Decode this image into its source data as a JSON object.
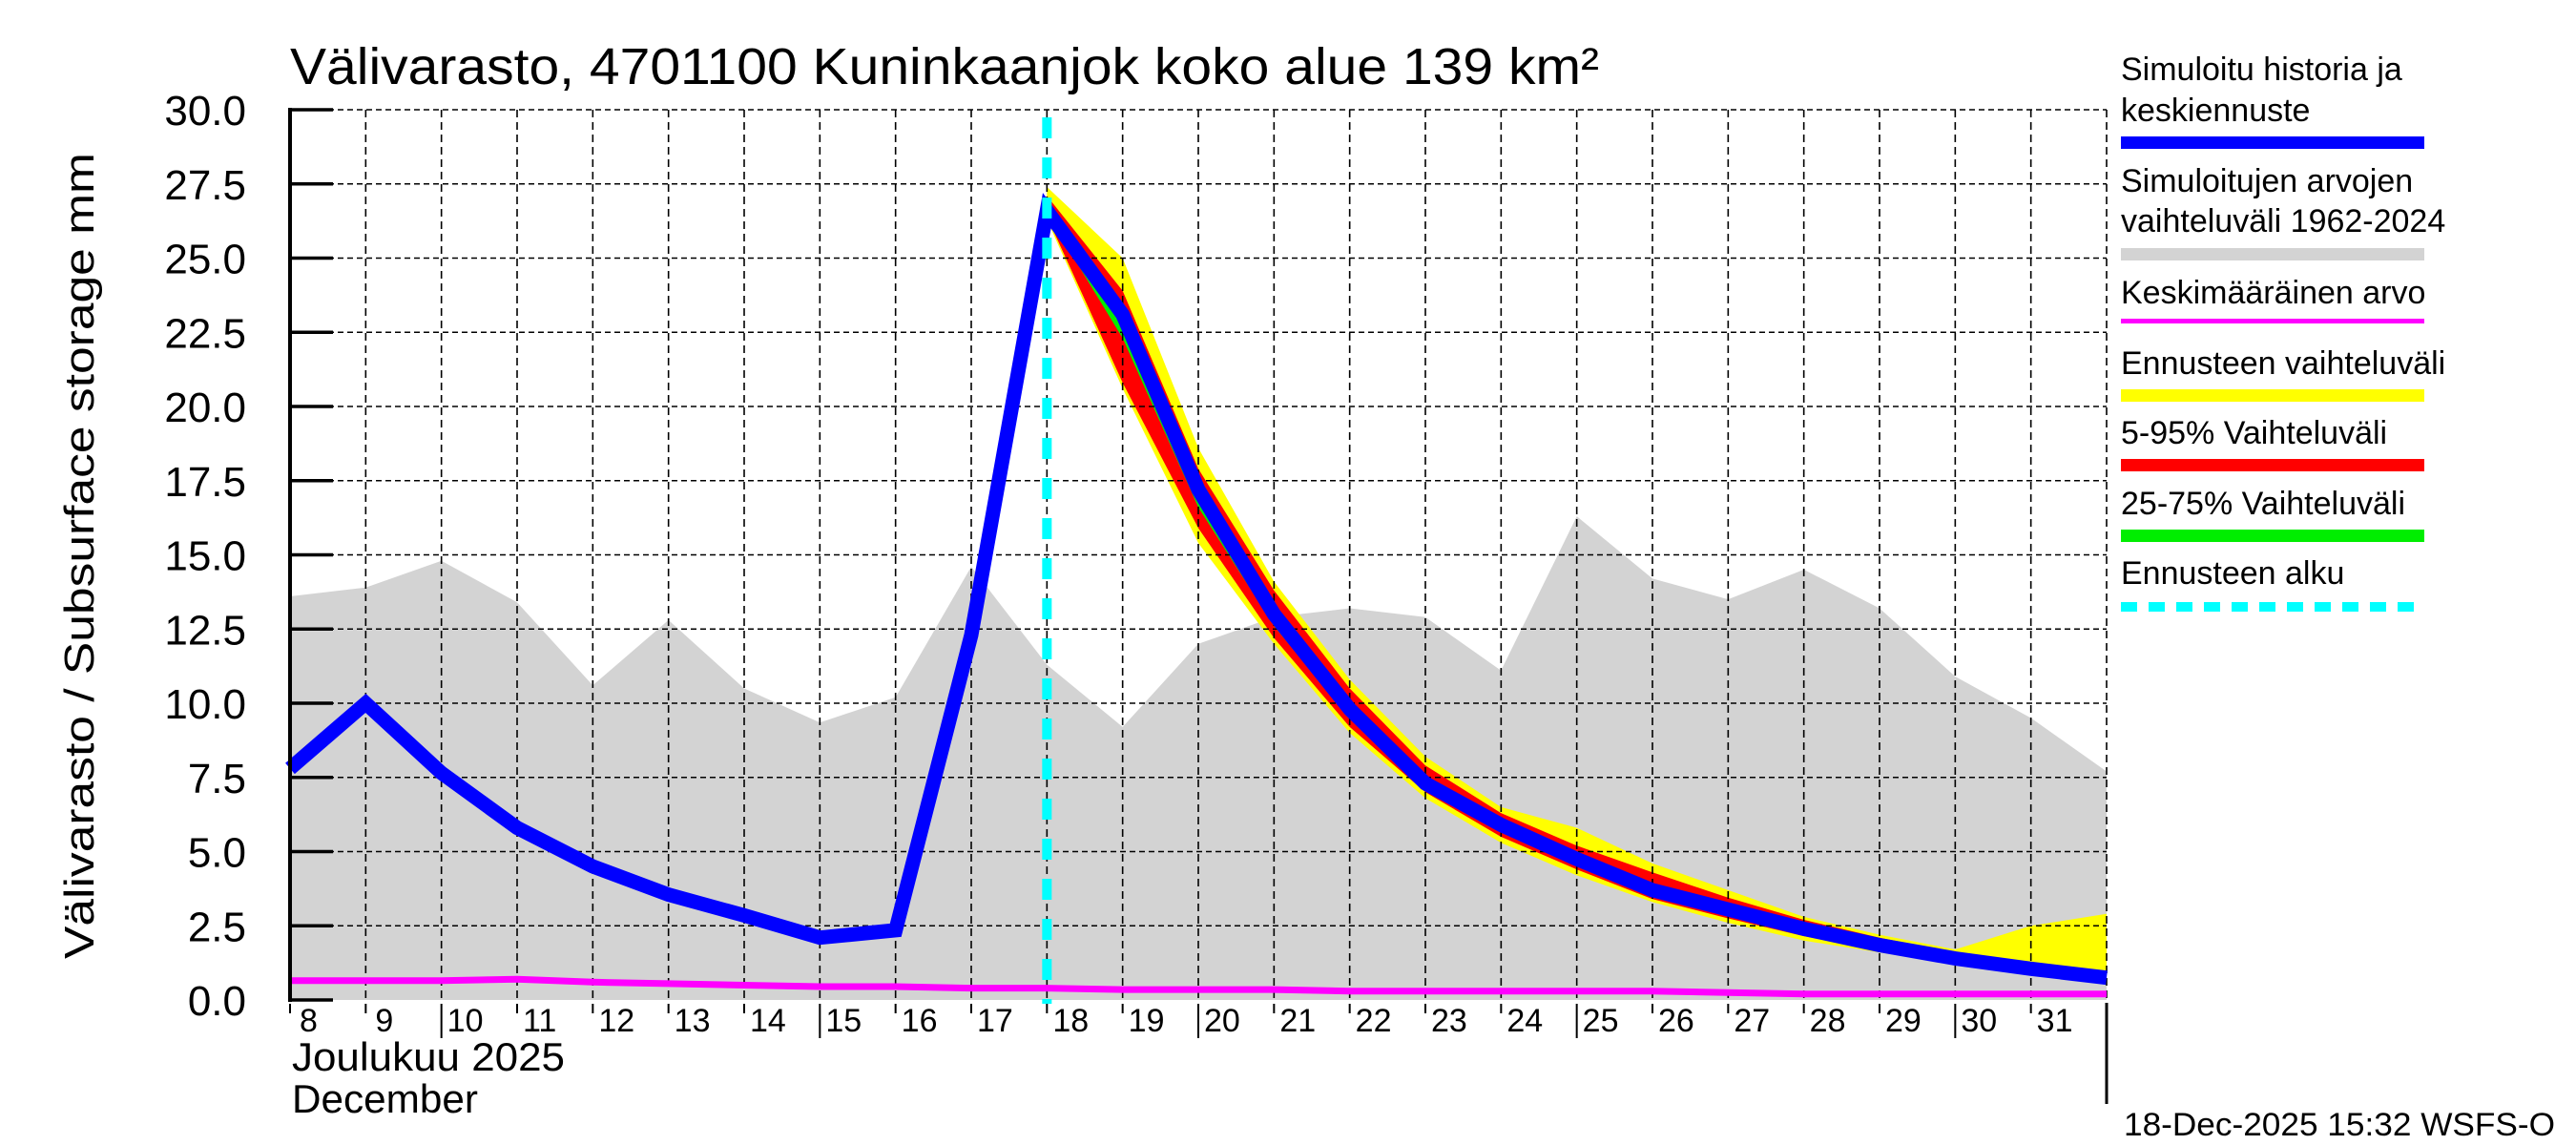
{
  "chart_data": {
    "type": "area",
    "title": "Välivarasto, 4701100 Kuninkaanjok koko alue 139 km²",
    "ylabel": "Välivarasto / Subsurface storage  mm",
    "xlabel_line1": "Joulukuu  2025",
    "xlabel_line2": "December",
    "ylim": [
      0,
      30
    ],
    "xlim": [
      8,
      32
    ],
    "yticks": [
      "0.0",
      "2.5",
      "5.0",
      "7.5",
      "10.0",
      "12.5",
      "15.0",
      "17.5",
      "20.0",
      "22.5",
      "25.0",
      "27.5",
      "30.0"
    ],
    "ytick_values": [
      0,
      2.5,
      5,
      7.5,
      10,
      12.5,
      15,
      17.5,
      20,
      22.5,
      25,
      27.5,
      30
    ],
    "xticks": [
      "8",
      "9",
      "10",
      "11",
      "12",
      "13",
      "14",
      "15",
      "16",
      "17",
      "18",
      "19",
      "20",
      "21",
      "22",
      "23",
      "24",
      "25",
      "26",
      "27",
      "28",
      "29",
      "30",
      "31"
    ],
    "xtick_values": [
      8,
      9,
      10,
      11,
      12,
      13,
      14,
      15,
      16,
      17,
      18,
      19,
      20,
      21,
      22,
      23,
      24,
      25,
      26,
      27,
      28,
      29,
      30,
      31
    ],
    "grid": true,
    "forecast_start": 18,
    "x": [
      8,
      9,
      10,
      11,
      12,
      13,
      14,
      15,
      16,
      17,
      18,
      19,
      20,
      21,
      22,
      23,
      24,
      25,
      26,
      27,
      28,
      29,
      30,
      31,
      32
    ],
    "series": [
      {
        "name": "Simuloitujen arvojen vaihteluväli 1962-2024",
        "kind": "band",
        "color": "#d3d3d3",
        "lower": [
          0,
          0,
          0,
          0,
          0,
          0,
          0,
          0,
          0,
          0,
          0,
          0,
          0,
          0,
          0,
          0,
          0,
          0,
          0,
          0,
          0,
          0,
          0,
          0,
          0
        ],
        "upper": [
          13.6,
          13.9,
          14.8,
          13.4,
          10.6,
          12.8,
          10.5,
          9.35,
          10.2,
          14.6,
          11.3,
          9.2,
          12.0,
          12.9,
          13.2,
          12.9,
          11.1,
          16.3,
          14.2,
          13.5,
          14.5,
          13.2,
          10.9,
          9.5,
          7.7
        ]
      },
      {
        "name": "Ennusteen vaihteluväli",
        "kind": "band",
        "color": "#ffff00",
        "x": [
          18,
          19,
          20,
          21,
          22,
          23,
          24,
          25,
          26,
          27,
          28,
          29,
          30,
          31,
          32
        ],
        "lower": [
          26.3,
          20.6,
          15.4,
          12.0,
          9.0,
          6.8,
          5.3,
          4.2,
          3.3,
          2.6,
          2.0,
          1.6,
          1.25,
          0.95,
          0.7
        ],
        "upper": [
          27.4,
          25.0,
          18.6,
          14.1,
          10.8,
          8.2,
          6.5,
          5.8,
          4.6,
          3.7,
          2.8,
          2.2,
          1.7,
          2.5,
          2.9
        ]
      },
      {
        "name": "5-95% Vaihteluväli",
        "kind": "band",
        "color": "#ff0000",
        "x": [
          18,
          19,
          20,
          21,
          22,
          23,
          24,
          25,
          26,
          27,
          28,
          29,
          30,
          31,
          32
        ],
        "lower": [
          26.4,
          20.8,
          15.9,
          12.2,
          9.2,
          7.0,
          5.5,
          4.4,
          3.4,
          2.75,
          2.15,
          1.7,
          1.3,
          1.0,
          0.75
        ],
        "upper": [
          27.1,
          23.9,
          17.9,
          13.8,
          10.5,
          7.9,
          6.3,
          5.2,
          4.3,
          3.45,
          2.7,
          2.1,
          1.6,
          1.25,
          0.95
        ]
      },
      {
        "name": "25-75% Vaihteluväli",
        "kind": "band",
        "color": "#00ee00",
        "x": [
          18,
          19,
          20,
          21,
          22,
          23,
          24,
          25,
          26,
          27,
          28,
          29,
          30,
          31,
          32
        ],
        "lower": [
          26.5,
          22.3,
          16.6,
          12.6,
          9.5,
          7.1,
          5.7,
          4.6,
          3.6,
          2.95,
          2.3,
          1.8,
          1.35,
          1.02,
          0.73
        ],
        "upper": [
          26.9,
          23.5,
          17.6,
          13.3,
          10.1,
          7.5,
          6.0,
          4.9,
          3.85,
          3.15,
          2.5,
          1.9,
          1.45,
          1.1,
          0.8
        ]
      },
      {
        "name": "Keskimääräinen arvo",
        "kind": "line",
        "color": "#ff00ff",
        "values": [
          0.65,
          0.65,
          0.65,
          0.7,
          0.6,
          0.55,
          0.5,
          0.45,
          0.45,
          0.4,
          0.4,
          0.35,
          0.35,
          0.35,
          0.3,
          0.3,
          0.3,
          0.3,
          0.3,
          0.25,
          0.2,
          0.2,
          0.2,
          0.2,
          0.2
        ]
      },
      {
        "name": "Simuloitu historia ja keskiennuste",
        "kind": "line",
        "color": "#0000ff",
        "values": [
          7.8,
          10.0,
          7.65,
          5.8,
          4.5,
          3.55,
          2.85,
          2.1,
          2.35,
          12.3,
          26.6,
          23.1,
          17.2,
          13.0,
          9.8,
          7.3,
          5.9,
          4.75,
          3.7,
          3.05,
          2.4,
          1.85,
          1.4,
          1.05,
          0.75
        ]
      }
    ],
    "legend": [
      {
        "line1": "Simuloitu historia ja",
        "line2": "keskiennuste",
        "color": "#0000ff",
        "style": "thick"
      },
      {
        "line1": "Simuloitujen arvojen",
        "line2": "vaihteluväli 1962-2024",
        "color": "#d3d3d3",
        "style": "thick"
      },
      {
        "line1": "Keskimääräinen arvo",
        "line2": "",
        "color": "#ff00ff",
        "style": "thin"
      },
      {
        "line1": "Ennusteen vaihteluväli",
        "line2": "",
        "color": "#ffff00",
        "style": "thick"
      },
      {
        "line1": "5-95% Vaihteluväli",
        "line2": "",
        "color": "#ff0000",
        "style": "thick"
      },
      {
        "line1": "25-75% Vaihteluväli",
        "line2": "",
        "color": "#00ee00",
        "style": "thick"
      },
      {
        "line1": "Ennusteen alku",
        "line2": "",
        "color": "#00ffff",
        "style": "dashed"
      }
    ],
    "legend_position": "right",
    "footer": "18-Dec-2025 15:32 WSFS-O"
  }
}
